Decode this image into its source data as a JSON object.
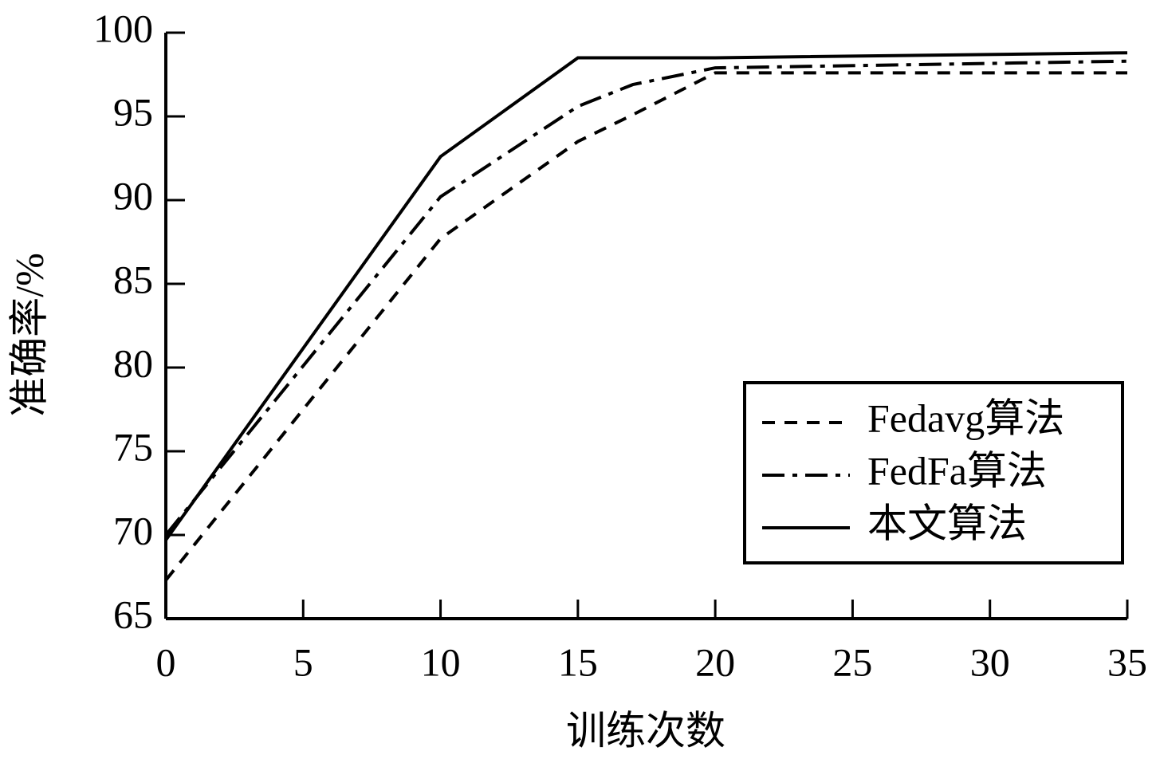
{
  "chart_data": {
    "type": "line",
    "x_label": "训练次数",
    "y_label": "准确率/%",
    "x": [
      0,
      10,
      15,
      17,
      20,
      35
    ],
    "series": [
      {
        "name": "Fedavg算法",
        "color": "#000000",
        "dash": "dashed",
        "values": [
          67.3,
          87.7,
          93.5,
          95.1,
          97.6,
          97.6
        ]
      },
      {
        "name": "FedFa算法",
        "color": "#000000",
        "dash": "dashdot",
        "values": [
          70.0,
          90.2,
          95.6,
          96.9,
          97.9,
          98.3
        ]
      },
      {
        "name": "本文算法",
        "color": "#000000",
        "dash": "solid",
        "values": [
          69.7,
          92.6,
          98.5,
          98.5,
          98.5,
          98.8
        ]
      }
    ],
    "xlim": [
      0,
      35
    ],
    "xticks": [
      0,
      5,
      10,
      15,
      20,
      25,
      30,
      35
    ],
    "ylim": [
      65,
      100
    ],
    "yticks": [
      65,
      70,
      75,
      80,
      85,
      90,
      95,
      100
    ],
    "legend": "lower right"
  }
}
